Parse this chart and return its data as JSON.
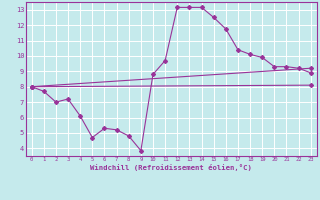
{
  "xlabel": "Windchill (Refroidissement éolien,°C)",
  "bg_color": "#c5eaec",
  "line_color": "#993399",
  "grid_color": "#ffffff",
  "xlim_min": -0.5,
  "xlim_max": 23.5,
  "ylim_min": 3.5,
  "ylim_max": 13.5,
  "xticks": [
    0,
    1,
    2,
    3,
    4,
    5,
    6,
    7,
    8,
    9,
    10,
    11,
    12,
    13,
    14,
    15,
    16,
    17,
    18,
    19,
    20,
    21,
    22,
    23
  ],
  "yticks": [
    4,
    5,
    6,
    7,
    8,
    9,
    10,
    11,
    12,
    13
  ],
  "line1_x": [
    0,
    1,
    2,
    3,
    4,
    5,
    6,
    7,
    8,
    9,
    10,
    11,
    12,
    13,
    14,
    15,
    16,
    17,
    18,
    19,
    20,
    21,
    22,
    23
  ],
  "line1_y": [
    8.0,
    7.7,
    7.0,
    7.2,
    6.1,
    4.7,
    5.3,
    5.2,
    4.8,
    3.85,
    8.8,
    9.7,
    13.15,
    13.15,
    13.15,
    12.5,
    11.75,
    10.4,
    10.1,
    9.9,
    9.3,
    9.3,
    9.2,
    8.9
  ],
  "line2_x": [
    0,
    23
  ],
  "line2_y": [
    8.0,
    9.2
  ],
  "line3_x": [
    0,
    23
  ],
  "line3_y": [
    8.0,
    8.1
  ]
}
